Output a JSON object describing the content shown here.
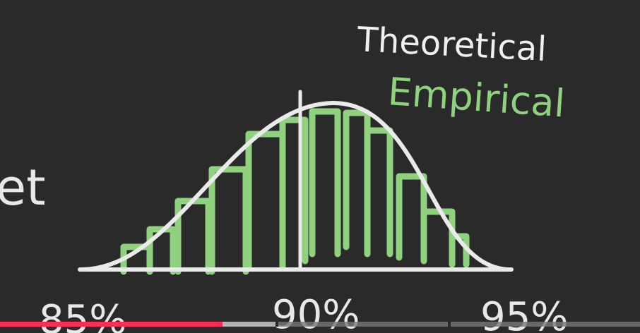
{
  "board": {
    "fragment": "et",
    "legend": {
      "theoretical": "Theoretical",
      "empirical": "Empirical"
    },
    "axis_labels": [
      "85%",
      "90%",
      "95%"
    ]
  }
}
